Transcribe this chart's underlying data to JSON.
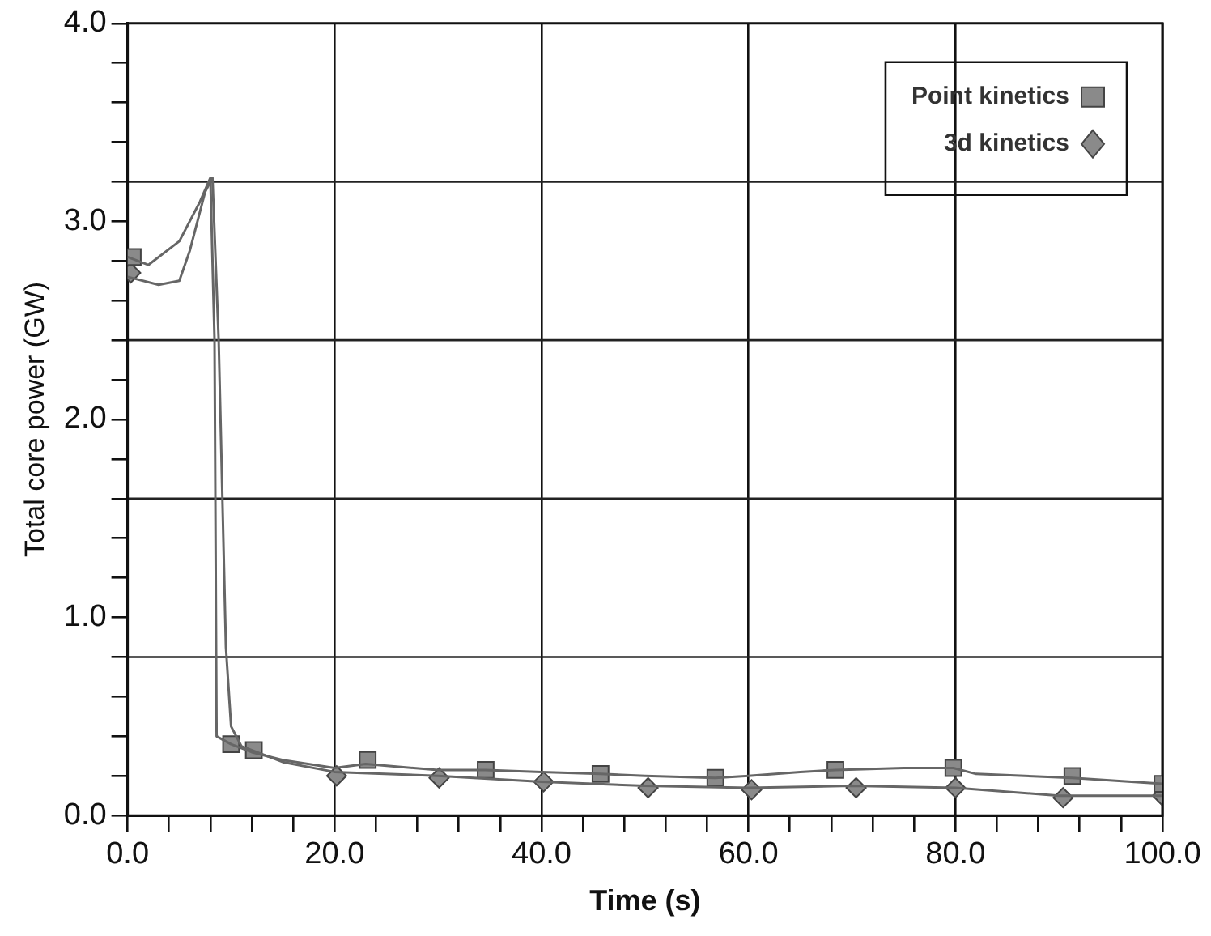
{
  "chart_data": {
    "type": "line",
    "xlabel": "Time (s)",
    "ylabel": "Total core power (GW)",
    "xlim": [
      0,
      100
    ],
    "ylim": [
      0,
      4
    ],
    "xticks": [
      {
        "value": 0,
        "label": "0.0"
      },
      {
        "value": 4,
        "label": null
      },
      {
        "value": 8,
        "label": null
      },
      {
        "value": 12,
        "label": null
      },
      {
        "value": 16,
        "label": null
      },
      {
        "value": 20,
        "label": "20.0"
      },
      {
        "value": 24,
        "label": null
      },
      {
        "value": 28,
        "label": null
      },
      {
        "value": 32,
        "label": null
      },
      {
        "value": 36,
        "label": null
      },
      {
        "value": 40,
        "label": "40.0"
      },
      {
        "value": 44,
        "label": null
      },
      {
        "value": 48,
        "label": null
      },
      {
        "value": 52,
        "label": null
      },
      {
        "value": 56,
        "label": null
      },
      {
        "value": 60,
        "label": "60.0"
      },
      {
        "value": 64,
        "label": null
      },
      {
        "value": 68,
        "label": null
      },
      {
        "value": 72,
        "label": null
      },
      {
        "value": 76,
        "label": null
      },
      {
        "value": 80,
        "label": "80.0"
      },
      {
        "value": 84,
        "label": null
      },
      {
        "value": 88,
        "label": null
      },
      {
        "value": 92,
        "label": null
      },
      {
        "value": 96,
        "label": null
      },
      {
        "value": 100,
        "label": "100.0"
      }
    ],
    "yticks": [
      {
        "value": 0,
        "label": "0.0"
      },
      {
        "value": 0.2,
        "label": null
      },
      {
        "value": 0.4,
        "label": null
      },
      {
        "value": 0.6,
        "label": null
      },
      {
        "value": 0.8,
        "label": null
      },
      {
        "value": 1,
        "label": "1.0"
      },
      {
        "value": 1.2,
        "label": null
      },
      {
        "value": 1.4,
        "label": null
      },
      {
        "value": 1.6,
        "label": null
      },
      {
        "value": 1.8,
        "label": null
      },
      {
        "value": 2,
        "label": "2.0"
      },
      {
        "value": 2.2,
        "label": null
      },
      {
        "value": 2.4,
        "label": null
      },
      {
        "value": 2.6,
        "label": null
      },
      {
        "value": 2.8,
        "label": null
      },
      {
        "value": 3,
        "label": "3.0"
      },
      {
        "value": 3.2,
        "label": null
      },
      {
        "value": 3.4,
        "label": null
      },
      {
        "value": 3.6,
        "label": null
      },
      {
        "value": 3.8,
        "label": null
      },
      {
        "value": 4,
        "label": "4.0"
      }
    ],
    "grid": "x",
    "legend": "top right",
    "ref_lines": [
      {
        "axis": "y",
        "value": 0.8,
        "color": "#222222"
      },
      {
        "axis": "y",
        "value": 1.6,
        "color": "#222222"
      },
      {
        "axis": "y",
        "value": 2.4,
        "color": "#222222"
      },
      {
        "axis": "y",
        "value": 3.2,
        "color": "#222222"
      }
    ],
    "series": [
      {
        "type": "line",
        "marker": "none",
        "color": "#666666",
        "x": [
          0,
          2,
          5,
          7,
          8,
          8.4,
          8.6,
          10,
          12,
          15,
          20,
          23,
          30,
          34.6,
          40,
          45.7,
          50,
          56.8,
          60,
          65,
          68.4,
          75,
          79.8,
          82,
          91.3,
          100
        ],
        "values": [
          2.82,
          2.78,
          2.9,
          3.1,
          3.22,
          2.4,
          0.4,
          0.36,
          0.32,
          0.28,
          0.24,
          0.26,
          0.23,
          0.23,
          0.22,
          0.21,
          0.2,
          0.19,
          0.2,
          0.22,
          0.23,
          0.24,
          0.24,
          0.21,
          0.19,
          0.16
        ]
      },
      {
        "type": "line",
        "marker": "none",
        "color": "#666666",
        "x": [
          0,
          3,
          5,
          6,
          7.5,
          8.2,
          8.8,
          9.5,
          10,
          11,
          15,
          20,
          30,
          40,
          50,
          60,
          70,
          80,
          90,
          100
        ],
        "values": [
          2.72,
          2.68,
          2.7,
          2.85,
          3.15,
          3.22,
          2.4,
          0.85,
          0.45,
          0.35,
          0.27,
          0.22,
          0.2,
          0.17,
          0.15,
          0.14,
          0.15,
          0.14,
          0.1,
          0.1
        ]
      },
      {
        "type": "scatter",
        "name": "Point kinetics",
        "marker": "square",
        "color": "#8a8a8a",
        "x": [
          0.5,
          10,
          12.2,
          23.2,
          34.6,
          45.7,
          56.8,
          68.4,
          79.8,
          91.3,
          100
        ],
        "values": [
          2.82,
          0.36,
          0.33,
          0.28,
          0.23,
          0.21,
          0.19,
          0.23,
          0.24,
          0.2,
          0.16
        ]
      },
      {
        "type": "scatter",
        "name": "3d kinetics",
        "marker": "diamond",
        "color": "#8a8a8a",
        "x": [
          0.3,
          20.2,
          30.1,
          40.2,
          50.3,
          60.3,
          70.4,
          80,
          90.4,
          100
        ],
        "values": [
          2.74,
          0.2,
          0.19,
          0.17,
          0.14,
          0.13,
          0.14,
          0.14,
          0.09,
          0.1
        ]
      }
    ]
  }
}
